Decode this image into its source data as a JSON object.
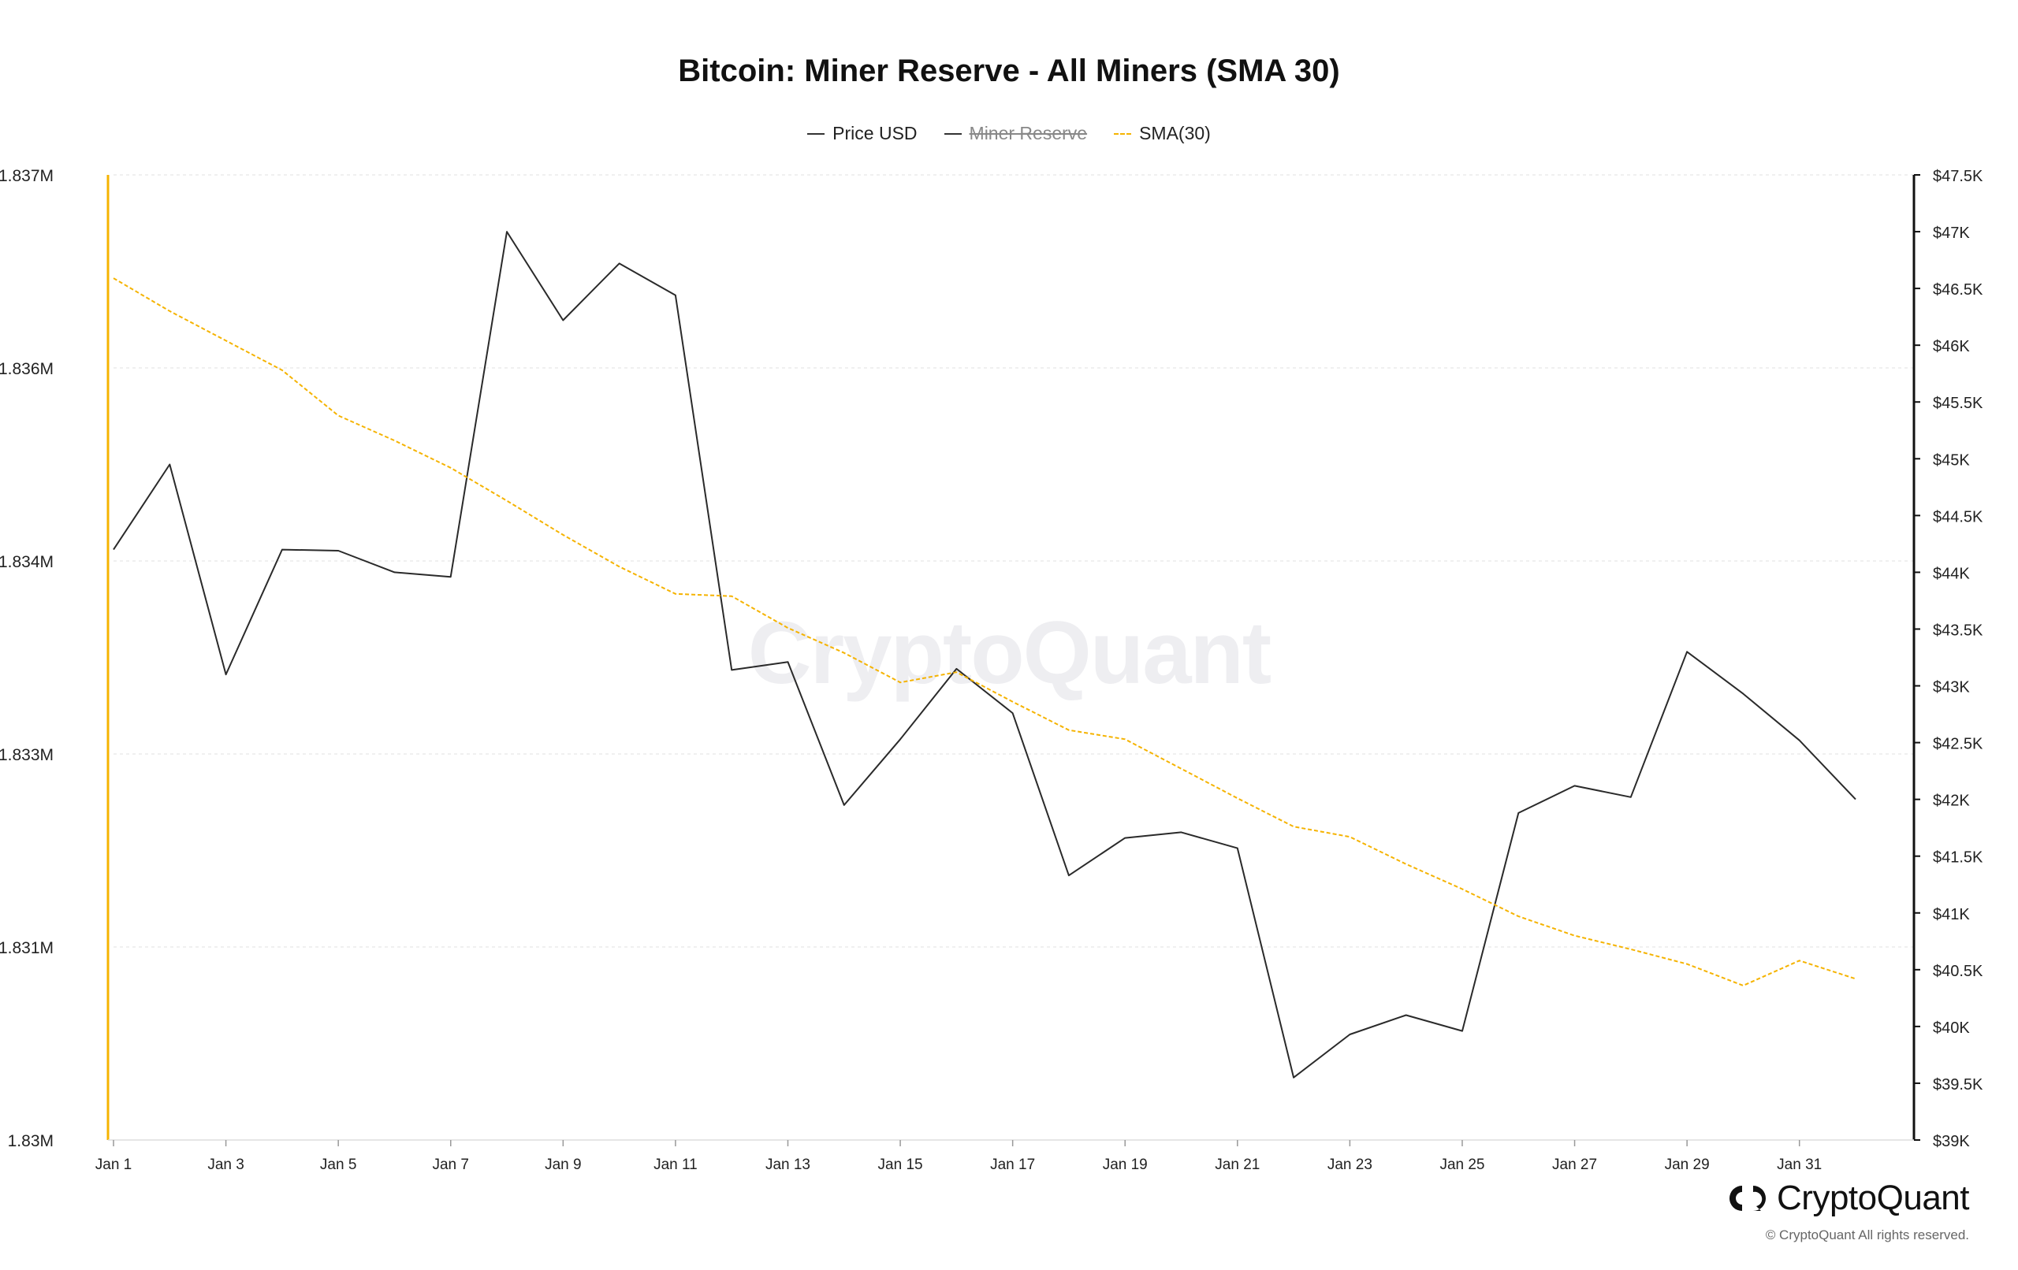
{
  "chart_data": {
    "type": "line",
    "title": "Bitcoin: Miner Reserve - All Miners (SMA 30)",
    "legend": [
      {
        "name": "Price USD",
        "style": "solid",
        "color": "#333333",
        "hidden": false
      },
      {
        "name": "Miner Reserve",
        "style": "solid",
        "color": "#333333",
        "hidden": true
      },
      {
        "name": "SMA(30)",
        "style": "dashed",
        "color": "#f5b301",
        "hidden": false
      }
    ],
    "x_ticks": [
      "Jan 1",
      "Jan 3",
      "Jan 5",
      "Jan 7",
      "Jan 9",
      "Jan 11",
      "Jan 13",
      "Jan 15",
      "Jan 17",
      "Jan 19",
      "Jan 21",
      "Jan 23",
      "Jan 25",
      "Jan 27",
      "Jan 29",
      "Jan 31"
    ],
    "y_left_ticks": [
      "1.83M",
      "1.831M",
      "1.833M",
      "1.834M",
      "1.836M",
      "1.837M"
    ],
    "y_left_range": [
      1.83,
      1.837
    ],
    "y_right_ticks": [
      "$39K",
      "$39.5K",
      "$40K",
      "$40.5K",
      "$41K",
      "$41.5K",
      "$42K",
      "$42.5K",
      "$43K",
      "$43.5K",
      "$44K",
      "$44.5K",
      "$45K",
      "$45.5K",
      "$46K",
      "$46.5K",
      "$47K",
      "$47.5K"
    ],
    "y_right_range": [
      39000,
      47500
    ],
    "grid": true,
    "legend_position": "top-center",
    "series": [
      {
        "name": "Price USD",
        "axis": "right",
        "x": [
          "Jan 1",
          "Jan 2",
          "Jan 3",
          "Jan 4",
          "Jan 5",
          "Jan 6",
          "Jan 7",
          "Jan 8",
          "Jan 9",
          "Jan 10",
          "Jan 11",
          "Jan 12",
          "Jan 13",
          "Jan 14",
          "Jan 15",
          "Jan 16",
          "Jan 17",
          "Jan 18",
          "Jan 19",
          "Jan 20",
          "Jan 21",
          "Jan 22",
          "Jan 23",
          "Jan 24",
          "Jan 25",
          "Jan 26",
          "Jan 27",
          "Jan 28",
          "Jan 29",
          "Jan 30",
          "Jan 31",
          "Feb 1"
        ],
        "values": [
          44200,
          44950,
          43100,
          44200,
          44190,
          44000,
          43960,
          47000,
          46220,
          46720,
          46440,
          43140,
          43210,
          41950,
          42530,
          43150,
          42760,
          41330,
          41660,
          41710,
          41570,
          39550,
          39930,
          40100,
          39960,
          41880,
          42120,
          42020,
          43300,
          42930,
          42520,
          42000
        ]
      },
      {
        "name": "SMA(30)",
        "axis": "right",
        "x": [
          "Jan 1",
          "Jan 2",
          "Jan 3",
          "Jan 4",
          "Jan 5",
          "Jan 6",
          "Jan 7",
          "Jan 8",
          "Jan 9",
          "Jan 10",
          "Jan 11",
          "Jan 12",
          "Jan 13",
          "Jan 14",
          "Jan 15",
          "Jan 16",
          "Jan 17",
          "Jan 18",
          "Jan 19",
          "Jan 20",
          "Jan 21",
          "Jan 22",
          "Jan 23",
          "Jan 24",
          "Jan 25",
          "Jan 26",
          "Jan 27",
          "Jan 28",
          "Jan 29",
          "Jan 30",
          "Jan 31",
          "Feb 1"
        ],
        "values": [
          46590,
          46300,
          46040,
          45780,
          45380,
          45160,
          44920,
          44630,
          44330,
          44050,
          43810,
          43790,
          43510,
          43290,
          43030,
          43120,
          42860,
          42610,
          42530,
          42270,
          42010,
          41760,
          41670,
          41430,
          41210,
          40970,
          40800,
          40680,
          40550,
          40360,
          40580,
          40420
        ]
      }
    ]
  },
  "brand": {
    "name": "CryptoQuant",
    "copyright": "© CryptoQuant All rights reserved."
  },
  "watermark": "CryptoQuant"
}
